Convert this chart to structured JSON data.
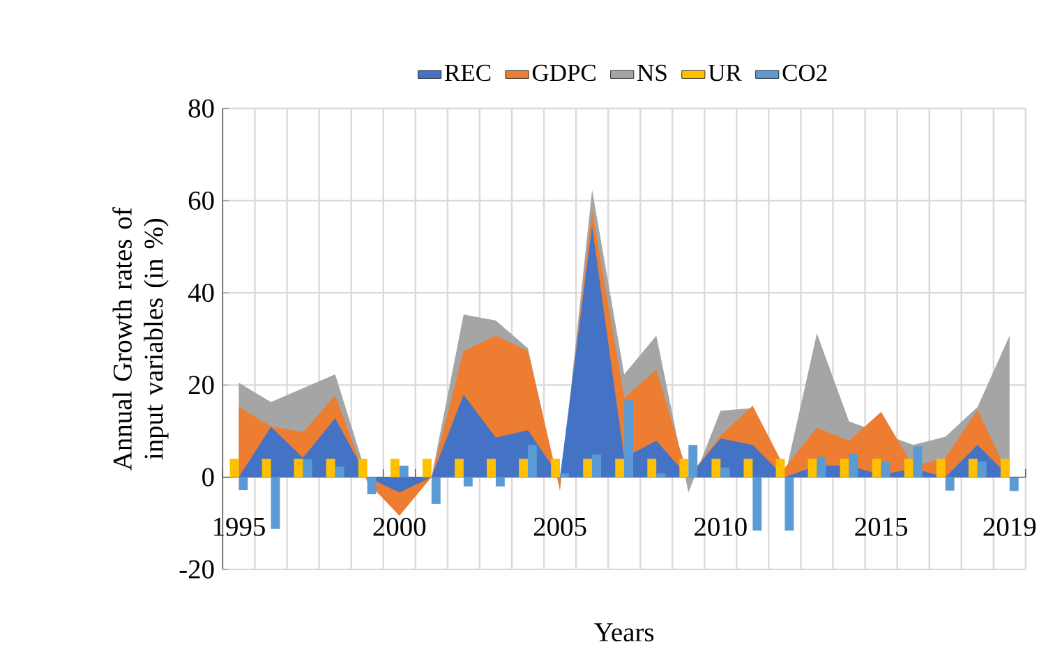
{
  "chart_data": {
    "type": "area",
    "xlabel": "Years",
    "ylabel": "Annual Growth rates of input variables (in %)",
    "categories": [
      "1995",
      null,
      null,
      null,
      null,
      "2000",
      null,
      null,
      null,
      null,
      "2005",
      null,
      null,
      null,
      null,
      "2010",
      null,
      null,
      null,
      null,
      "2015",
      null,
      null,
      null,
      "2019"
    ],
    "ylim": [
      -20,
      80
    ],
    "yticks": [
      -20,
      0,
      20,
      40,
      60,
      80
    ],
    "grid": true,
    "legend": "top",
    "series": [
      {
        "name": "REC",
        "color": "#4472c4",
        "values": [
          0,
          10.9,
          4.2,
          12.8,
          0,
          -3.3,
          0,
          17.9,
          8.6,
          10.2,
          0,
          54.4,
          4.2,
          7.9,
          0,
          8.4,
          7,
          0,
          2.5,
          2.5,
          0.5,
          1.9,
          0,
          7,
          0
        ]
      },
      {
        "name": "GDPC",
        "color": "#ed7d31",
        "values": [
          15.3,
          11,
          9.8,
          17.7,
          -1,
          -8.4,
          0,
          27.4,
          30.7,
          27.4,
          -2.5,
          57.7,
          17.2,
          23.3,
          0,
          9,
          15.5,
          2,
          10.7,
          7.9,
          14.2,
          2.3,
          4.2,
          14.6,
          0
        ]
      },
      {
        "name": "NS",
        "color": "#a5a5a5",
        "values": [
          20.5,
          16.3,
          null,
          22.3,
          0,
          null,
          0,
          35.3,
          34,
          28,
          -3,
          62.3,
          22.3,
          30.7,
          -3.3,
          14.4,
          15,
          0,
          31.2,
          12.1,
          null,
          7,
          8.8,
          15.2,
          30.7
        ]
      },
      {
        "name": "UR",
        "type": "bar",
        "color": "#ffc000",
        "values": [
          4,
          4,
          4,
          4,
          4,
          4,
          4,
          4,
          4,
          4,
          4,
          4,
          4,
          4,
          4,
          4,
          4,
          4,
          4,
          4,
          4,
          4,
          4,
          4,
          4
        ]
      },
      {
        "name": "CO2",
        "type": "bar",
        "color": "#5b9bd5",
        "values": [
          -2.8,
          -11.2,
          3.9,
          2.3,
          -3.7,
          2.5,
          -5.8,
          -2,
          -2,
          7,
          0.8,
          4.9,
          16.7,
          0.8,
          7,
          2.1,
          -11.6,
          -11.6,
          4.4,
          5.1,
          3.3,
          6.7,
          -2.9,
          3.4,
          -3
        ]
      }
    ]
  }
}
